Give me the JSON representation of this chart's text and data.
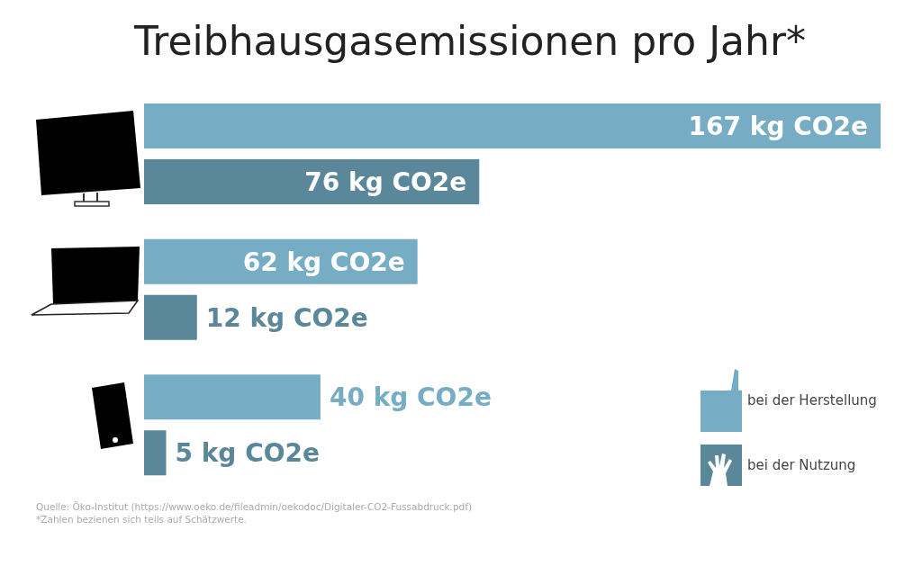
{
  "chart_data": {
    "type": "bar",
    "orientation": "horizontal",
    "title": "Treibhausgasemissionen pro Jahr*",
    "categories": [
      null,
      null,
      null
    ],
    "series": [
      {
        "name": "bei der Herstellung",
        "color": "#76adc4",
        "values": [
          167,
          62,
          40
        ],
        "value_labels": [
          "167 kg CO2e",
          "62 kg CO2e",
          "40 kg CO2e"
        ]
      },
      {
        "name": "bei der Nutzung",
        "color": "#5a8799",
        "values": [
          76,
          12,
          5
        ],
        "value_labels": [
          "76 kg CO2e",
          "12 kg CO2e",
          "5 kg CO2e"
        ]
      }
    ],
    "legend": "bottom right",
    "annotations": [
      "Quelle: Öko-Institut (https://www.oeko.de/fileadmin/oekodoc/Digitaler-CO2-Fussabdruck.pdf)",
      "*Zahlen bezienen sich teils auf Schätzwerte."
    ]
  }
}
